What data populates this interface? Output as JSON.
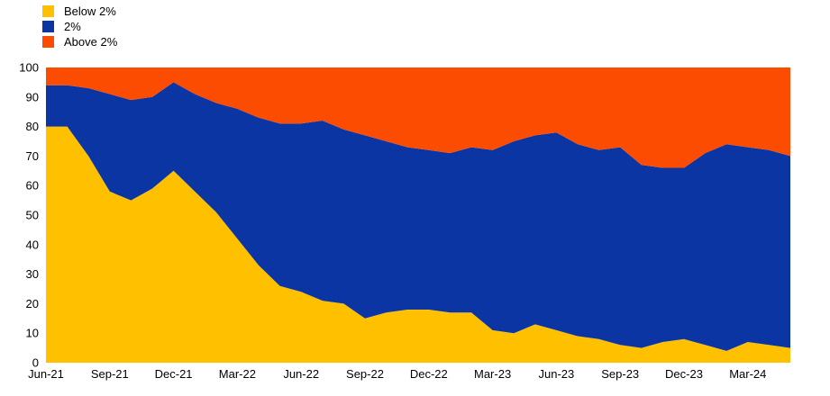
{
  "chart_data": {
    "type": "area",
    "stacked": true,
    "title": "",
    "xlabel": "",
    "ylabel": "",
    "ylim": [
      0,
      100
    ],
    "y_ticks": [
      0,
      10,
      20,
      30,
      40,
      50,
      60,
      70,
      80,
      90,
      100
    ],
    "grid": false,
    "legend_position": "top-left",
    "x": [
      "Jun-21",
      "Jul-21",
      "Aug-21",
      "Sep-21",
      "Oct-21",
      "Nov-21",
      "Dec-21",
      "Jan-22",
      "Feb-22",
      "Mar-22",
      "Apr-22",
      "May-22",
      "Jun-22",
      "Jul-22",
      "Aug-22",
      "Sep-22",
      "Oct-22",
      "Nov-22",
      "Dec-22",
      "Jan-23",
      "Feb-23",
      "Mar-23",
      "Apr-23",
      "May-23",
      "Jun-23",
      "Jul-23",
      "Aug-23",
      "Sep-23",
      "Oct-23",
      "Nov-23",
      "Dec-23",
      "Jan-24",
      "Feb-24",
      "Mar-24",
      "Apr-24",
      "May-24"
    ],
    "x_tick_every": 3,
    "x_tick_labels": [
      "Jun-21",
      "Sep-21",
      "Dec-21",
      "Mar-22",
      "Jun-22",
      "Sep-22",
      "Dec-22",
      "Mar-23",
      "Jun-23",
      "Sep-23",
      "Dec-23",
      "Mar-24"
    ],
    "series": [
      {
        "name": "Below 2%",
        "color": "#ffc000",
        "values": [
          80,
          80,
          70,
          58,
          55,
          59,
          65,
          58,
          51,
          42,
          33,
          26,
          24,
          21,
          20,
          15,
          17,
          18,
          18,
          17,
          17,
          11,
          10,
          13,
          11,
          9,
          8,
          6,
          5,
          7,
          8,
          6,
          4,
          7,
          6,
          5
        ]
      },
      {
        "name": "2%",
        "color": "#0a35a3",
        "values": [
          14,
          14,
          23,
          33,
          34,
          31,
          30,
          33,
          37,
          44,
          50,
          55,
          57,
          61,
          59,
          62,
          58,
          55,
          54,
          54,
          56,
          61,
          65,
          64,
          67,
          65,
          64,
          67,
          62,
          59,
          58,
          65,
          70,
          66,
          66,
          65
        ]
      },
      {
        "name": "Above 2%",
        "color": "#fc4c02",
        "values": [
          6,
          6,
          7,
          9,
          11,
          10,
          5,
          9,
          12,
          14,
          17,
          19,
          19,
          18,
          21,
          23,
          25,
          27,
          28,
          29,
          27,
          28,
          25,
          23,
          22,
          26,
          28,
          27,
          33,
          34,
          34,
          29,
          26,
          27,
          28,
          30
        ]
      }
    ]
  },
  "legend": {
    "items": [
      {
        "label": "Below 2%",
        "color": "#ffc000"
      },
      {
        "label": "2%",
        "color": "#0a35a3"
      },
      {
        "label": "Above 2%",
        "color": "#fc4c02"
      }
    ]
  }
}
